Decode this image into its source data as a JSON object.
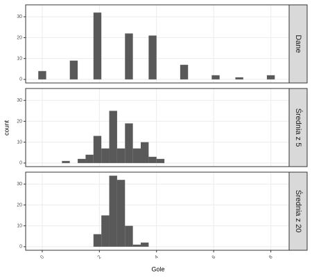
{
  "chart_data": {
    "type": "histogram",
    "xlabel": "Gole",
    "ylabel": "count",
    "color": "#595959",
    "bins": [
      -0.1379,
      0.1379,
      0.4138,
      0.6897,
      0.9655,
      1.2414,
      1.5172,
      1.7931,
      2.069,
      2.3448,
      2.6207,
      2.8966,
      3.1724,
      3.4483,
      3.7241,
      4.0,
      4.2759,
      4.5517,
      4.8276,
      5.1034,
      5.3793,
      5.6552,
      5.931,
      6.2069,
      6.4828,
      6.7586,
      7.0345,
      7.3103,
      7.5862,
      7.8621,
      8.1379
    ],
    "xlim": [
      -0.58,
      8.64
    ],
    "xticks": [
      0,
      2,
      4,
      6,
      8
    ],
    "ylim": [
      -1.7,
      35.7
    ],
    "yticks": [
      0,
      10,
      20,
      30
    ],
    "grid": true,
    "facets": [
      {
        "name": "Dane",
        "values": [
          4,
          0,
          0,
          0,
          9,
          0,
          0,
          32,
          0,
          0,
          0,
          22,
          0,
          0,
          21,
          0,
          0,
          0,
          7,
          0,
          0,
          0,
          2,
          0,
          0,
          1,
          0,
          0,
          0,
          2
        ]
      },
      {
        "name": "Średnia z 5",
        "values": [
          0,
          0,
          0,
          1,
          0,
          2,
          4,
          13,
          7,
          25,
          7,
          19,
          7,
          10,
          3,
          2,
          0,
          0,
          0,
          0,
          0,
          0,
          0,
          0,
          0,
          0,
          0,
          0,
          0,
          0
        ]
      },
      {
        "name": "Średnia z 20",
        "values": [
          0,
          0,
          0,
          0,
          0,
          0,
          0,
          6,
          15,
          34,
          32,
          10,
          1,
          2,
          0,
          0,
          0,
          0,
          0,
          0,
          0,
          0,
          0,
          0,
          0,
          0,
          0,
          0,
          0,
          0
        ]
      }
    ]
  }
}
